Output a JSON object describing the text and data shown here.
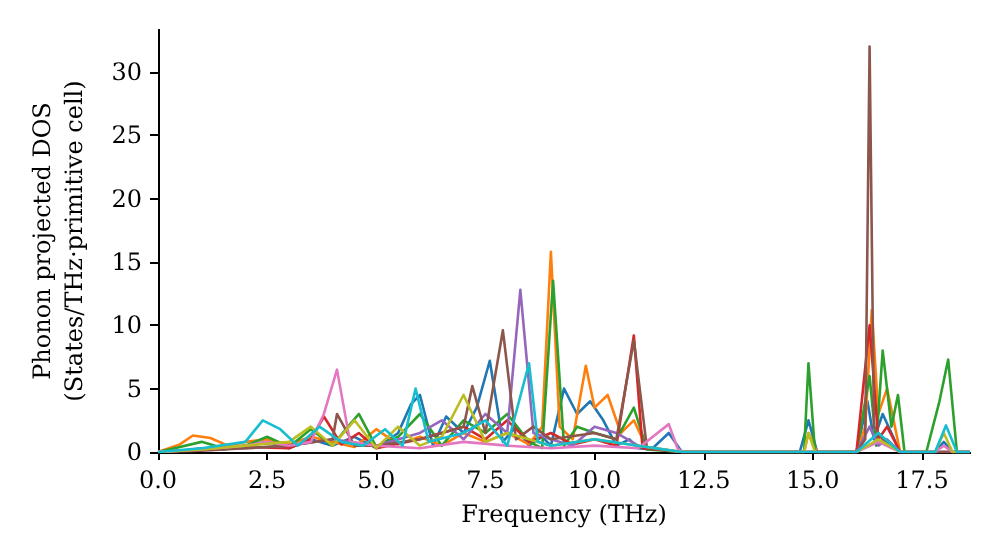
{
  "chart_data": {
    "type": "line",
    "xlabel": "Frequency (THz)",
    "ylabel": "Phonon projected DOS\n(States/THz·primitive cell)",
    "xlim": [
      0,
      18.6
    ],
    "ylim": [
      0,
      33.3
    ],
    "xticks": [
      {
        "value": 0,
        "label": "0.0"
      },
      {
        "value": 2.5,
        "label": "2.5"
      },
      {
        "value": 5,
        "label": "5.0"
      },
      {
        "value": 7.5,
        "label": "7.5"
      },
      {
        "value": 10,
        "label": "10.0"
      },
      {
        "value": 12.5,
        "label": "12.5"
      },
      {
        "value": 15,
        "label": "15.0"
      },
      {
        "value": 17.5,
        "label": "17.5"
      }
    ],
    "yticks": [
      0,
      5,
      10,
      15,
      20,
      25,
      30
    ],
    "grid": false,
    "marker": "none",
    "line_style": "solid",
    "series": [
      {
        "color": "#1f77b4",
        "x": [
          0,
          0.5,
          1,
          1.5,
          2,
          2.5,
          3,
          3.5,
          4,
          4.5,
          5,
          5.5,
          5.8,
          6,
          6.3,
          6.6,
          7,
          7.3,
          7.6,
          7.9,
          8.2,
          8.5,
          8.8,
          9,
          9.3,
          9.6,
          9.9,
          10.2,
          10.5,
          10.8,
          11,
          11.3,
          11.7,
          12,
          14.7,
          14.9,
          15.1,
          16,
          16.25,
          16.4,
          16.6,
          16.8,
          17,
          17.8,
          18,
          18.2,
          18.6
        ],
        "values": [
          0,
          0.1,
          0.3,
          0.2,
          0.5,
          0.8,
          0.3,
          1,
          0.5,
          1.2,
          0.3,
          1.5,
          3.8,
          4.5,
          0.5,
          2.8,
          1.5,
          3.5,
          7.2,
          0.8,
          2,
          0.5,
          1.2,
          0.5,
          5,
          3,
          4,
          2.5,
          0.5,
          1,
          0.3,
          0.2,
          1.5,
          0,
          0,
          2.5,
          0,
          0,
          4,
          1,
          3,
          1.5,
          0,
          0,
          0.8,
          0,
          0
        ]
      },
      {
        "color": "#ff7f0e",
        "x": [
          0,
          0.5,
          0.8,
          1.2,
          1.6,
          2,
          2.5,
          3,
          3.5,
          4,
          4.5,
          5,
          5.5,
          6,
          6.5,
          7,
          7.5,
          8,
          8.5,
          8.8,
          9,
          9.2,
          9.5,
          9.8,
          10,
          10.3,
          10.6,
          10.9,
          11.2,
          12,
          14.8,
          14.9,
          15.1,
          16,
          16.2,
          16.35,
          16.5,
          16.7,
          17
        ],
        "values": [
          0,
          0.6,
          1.3,
          1.1,
          0.5,
          0.8,
          1.0,
          0.6,
          1.2,
          0.8,
          0.4,
          1.8,
          0.6,
          1.2,
          0.5,
          1.5,
          0.8,
          1.5,
          0.6,
          2,
          15.8,
          2,
          1,
          6.8,
          3.5,
          4.5,
          1.5,
          2.5,
          0.3,
          0,
          0,
          1.5,
          0,
          0,
          2,
          11.2,
          3,
          5,
          0
        ]
      },
      {
        "color": "#2ca02c",
        "x": [
          0,
          0.5,
          1,
          1.5,
          2,
          2.5,
          3,
          3.5,
          4,
          4.3,
          4.6,
          5,
          5.5,
          6,
          6.5,
          7,
          7.5,
          8,
          8.5,
          8.8,
          9.05,
          9.3,
          9.6,
          10,
          10.5,
          10.9,
          11.2,
          12,
          14.8,
          14.9,
          15.05,
          16,
          16.3,
          16.45,
          16.6,
          16.8,
          16.95,
          17.1,
          17.6,
          17.9,
          18.1,
          18.3,
          18.6
        ],
        "values": [
          0,
          0.4,
          0.8,
          0.3,
          0.5,
          1.2,
          0.4,
          1.8,
          0.5,
          1.8,
          3,
          0.4,
          1.2,
          3,
          0.5,
          2.5,
          1.5,
          3,
          0.8,
          0.3,
          13.5,
          0.5,
          2,
          1.5,
          1,
          3.5,
          0.2,
          0,
          0,
          7,
          0,
          0,
          6,
          0.5,
          8,
          2,
          4.5,
          0,
          0,
          4,
          7.3,
          0,
          0
        ]
      },
      {
        "color": "#d62728",
        "x": [
          0,
          1,
          2,
          3,
          3.5,
          3.8,
          4.2,
          4.6,
          5,
          6,
          7,
          7.5,
          8,
          8.5,
          9,
          9.5,
          10,
          10.5,
          10.9,
          11.1,
          12,
          16,
          16.3,
          16.5,
          16.7,
          17,
          18.6
        ],
        "values": [
          0,
          0.2,
          0.4,
          0.3,
          1,
          2.8,
          0.6,
          1.5,
          0.3,
          1,
          2,
          1,
          2.5,
          0.8,
          1.5,
          0.6,
          1,
          0.5,
          9.2,
          0.3,
          0,
          0,
          10,
          1,
          2,
          0,
          0
        ]
      },
      {
        "color": "#9467bd",
        "x": [
          0,
          1,
          2,
          3,
          4,
          5,
          6,
          6.5,
          7,
          7.5,
          8,
          8.3,
          8.6,
          9,
          9.5,
          10,
          10.5,
          11,
          12,
          16,
          16.3,
          16.5,
          16.7,
          17,
          18.6
        ],
        "values": [
          0,
          0.2,
          0.3,
          0.5,
          1,
          0.5,
          1.5,
          2.5,
          1,
          3,
          1.5,
          12.8,
          1.5,
          1,
          0.5,
          2,
          1.5,
          0.5,
          0,
          0,
          2,
          0.5,
          1,
          0,
          0
        ]
      },
      {
        "color": "#8c564b",
        "x": [
          0,
          1,
          2,
          3,
          4,
          4.1,
          4.5,
          5,
          6,
          7,
          7.2,
          7.5,
          7.9,
          8.2,
          8.6,
          9,
          10,
          10.5,
          10.9,
          11.2,
          12,
          16,
          16.2,
          16.3,
          16.4,
          16.6,
          17,
          18.6
        ],
        "values": [
          0,
          0.1,
          0.3,
          0.5,
          1,
          3,
          0.5,
          0.5,
          1,
          2,
          5.2,
          1.5,
          9.6,
          1,
          2,
          1,
          1.5,
          1,
          8.8,
          0.3,
          0,
          0,
          1,
          32,
          2,
          1,
          0,
          0
        ]
      },
      {
        "color": "#e377c2",
        "x": [
          0,
          1,
          2,
          2.5,
          3,
          3.5,
          3.8,
          4.1,
          4.4,
          5,
          6,
          7,
          8,
          9,
          10,
          11,
          11.7,
          11.9,
          12,
          16,
          16.5,
          17,
          17.8,
          18,
          18.2,
          18.6
        ],
        "values": [
          0,
          0.2,
          0.5,
          0.8,
          0.5,
          0.8,
          3,
          6.5,
          0.8,
          0.5,
          0.3,
          0.8,
          0.5,
          0.3,
          0.5,
          0.3,
          2.2,
          0.3,
          0,
          0,
          0.8,
          0,
          0,
          0.5,
          0,
          0
        ]
      },
      {
        "color": "#bcbd22",
        "x": [
          0,
          1,
          2,
          3,
          3.5,
          4,
          4.5,
          5,
          5.5,
          6,
          6.5,
          7,
          7.5,
          8,
          9,
          10,
          11,
          12,
          14.8,
          14.9,
          15.05,
          16,
          16.5,
          17,
          17.8,
          18,
          18.2,
          18.6
        ],
        "values": [
          0,
          0.2,
          0.5,
          0.8,
          2,
          0.5,
          2.5,
          0.3,
          2,
          0.5,
          1.2,
          4.5,
          0.8,
          1.5,
          0.5,
          1,
          0.5,
          0,
          0,
          1.5,
          0,
          0,
          1,
          0,
          0,
          1.5,
          0,
          0
        ]
      },
      {
        "color": "#17becf",
        "x": [
          0,
          1,
          2,
          2.4,
          2.8,
          3.2,
          3.7,
          4.2,
          4.7,
          5.2,
          5.6,
          5.9,
          6.2,
          7,
          7.5,
          8,
          8.5,
          8.7,
          9,
          10,
          11,
          12,
          16,
          16.5,
          17,
          17.8,
          18.05,
          18.3,
          18.6
        ],
        "values": [
          0,
          0.3,
          0.8,
          2.5,
          1.8,
          0.5,
          2,
          0.8,
          0.5,
          1.8,
          0.5,
          5,
          0.8,
          1.5,
          2.5,
          0.5,
          7,
          0.8,
          0.5,
          1,
          0.5,
          0,
          0,
          1.5,
          0,
          0,
          2.1,
          0,
          0
        ]
      }
    ]
  }
}
